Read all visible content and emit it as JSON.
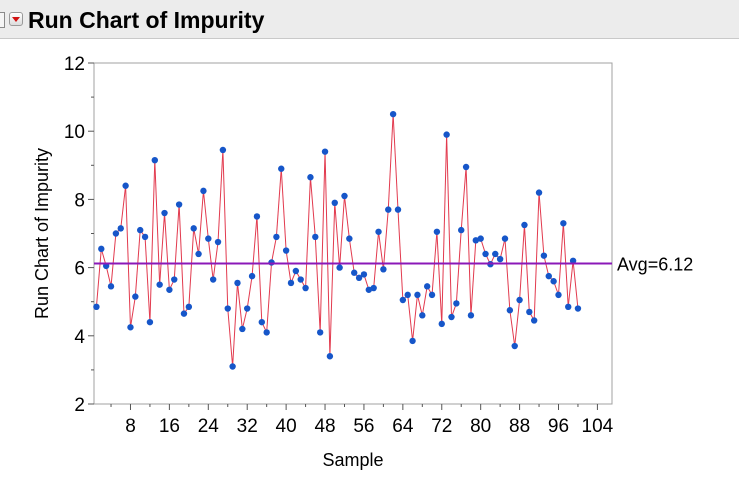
{
  "window": {
    "title": "Run Chart of Impurity"
  },
  "colors": {
    "series_line": "#e23a4e",
    "series_point": "#1656c9",
    "average_line": "#8b18b8",
    "header_bg": "#ececec",
    "disclosure_triangle": "#d11212"
  },
  "icons": {
    "disclosure": "red-disclosure-triangle-icon"
  },
  "chart_data": {
    "type": "line",
    "title": "Run Chart of Impurity",
    "xlabel": "Sample",
    "ylabel": "Run Chart of Impurity",
    "xlim": [
      0.5,
      107
    ],
    "ylim": [
      2,
      12
    ],
    "x_ticks": [
      8,
      16,
      24,
      32,
      40,
      48,
      56,
      64,
      72,
      80,
      88,
      96,
      104
    ],
    "y_ticks": [
      2,
      4,
      6,
      8,
      10,
      12
    ],
    "average": 6.12,
    "average_label": "Avg=6.12",
    "grid": false,
    "series": [
      {
        "name": "Impurity",
        "values": [
          4.85,
          6.55,
          6.05,
          5.45,
          7.0,
          7.15,
          8.4,
          4.25,
          5.15,
          7.1,
          6.9,
          4.4,
          9.15,
          5.5,
          7.6,
          5.35,
          5.65,
          7.85,
          4.65,
          4.85,
          7.15,
          6.4,
          8.25,
          6.85,
          5.65,
          6.75,
          9.45,
          4.8,
          3.1,
          5.55,
          4.2,
          4.8,
          5.75,
          7.5,
          4.4,
          4.1,
          6.15,
          6.9,
          8.9,
          6.5,
          5.55,
          5.9,
          5.65,
          5.4,
          8.65,
          6.9,
          4.1,
          9.4,
          3.4,
          7.9,
          6.0,
          8.1,
          6.85,
          5.85,
          5.7,
          5.8,
          5.35,
          5.4,
          7.05,
          5.95,
          7.7,
          10.5,
          7.7,
          5.05,
          5.2,
          3.85,
          5.2,
          4.6,
          5.45,
          5.2,
          7.05,
          4.35,
          9.9,
          4.55,
          4.95,
          7.1,
          8.95,
          4.6,
          6.8,
          6.85,
          6.4,
          6.1,
          6.4,
          6.25,
          6.85,
          4.75,
          3.7,
          5.05,
          7.25,
          4.7,
          4.45,
          8.2,
          6.35,
          5.75,
          5.6,
          5.2,
          7.3,
          4.85,
          6.2,
          4.8
        ]
      }
    ]
  }
}
